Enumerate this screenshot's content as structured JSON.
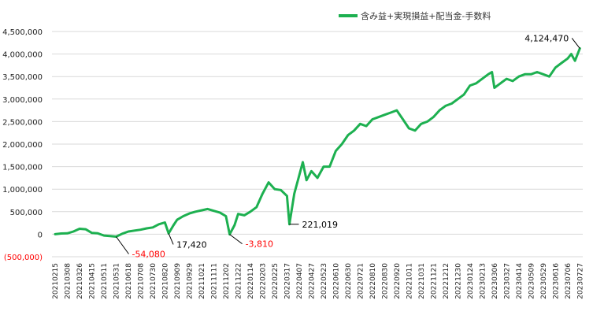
{
  "chart_data": {
    "type": "line",
    "title": "",
    "xlabel": "",
    "ylabel": "",
    "ylim": [
      -500000,
      4500000
    ],
    "yticks": [
      {
        "value": 4500000,
        "label": "4,500,000"
      },
      {
        "value": 4000000,
        "label": "4,000,000"
      },
      {
        "value": 3500000,
        "label": "3,500,000"
      },
      {
        "value": 3000000,
        "label": "3,000,000"
      },
      {
        "value": 2500000,
        "label": "2,500,000"
      },
      {
        "value": 2000000,
        "label": "2,000,000"
      },
      {
        "value": 1500000,
        "label": "1,500,000"
      },
      {
        "value": 1000000,
        "label": "1,000,000"
      },
      {
        "value": 500000,
        "label": "500,000"
      },
      {
        "value": 0,
        "label": "0"
      },
      {
        "value": -500000,
        "label": "(500,000)",
        "color": "#ff0000"
      }
    ],
    "x_tick_labels": [
      "20210215",
      "20210308",
      "20210326",
      "20210415",
      "20210511",
      "20210531",
      "20210618",
      "20210708",
      "20210730",
      "20210820",
      "20210909",
      "20210929",
      "20211021",
      "20211111",
      "20211202",
      "20211222",
      "20220114",
      "20220203",
      "20220225",
      "20220317",
      "20220407",
      "20220427",
      "20220523",
      "20220610",
      "20220630",
      "20220721",
      "20220810",
      "20220830",
      "20220920",
      "20221011",
      "20221031",
      "20221121",
      "20221212",
      "20221230",
      "20230124",
      "20230213",
      "20230306",
      "20230327",
      "20230414",
      "20230509",
      "20230529",
      "20230616",
      "20230706",
      "20230727"
    ],
    "grid": true,
    "legend": "top-center",
    "line_color": "#1db050",
    "series": [
      {
        "name": "含み益+実現損益+配当金-手数料",
        "values": [
          {
            "x": 0,
            "y": 0
          },
          {
            "x": 0.5,
            "y": 15000
          },
          {
            "x": 1,
            "y": 20000
          },
          {
            "x": 1.5,
            "y": 60000
          },
          {
            "x": 2,
            "y": 120000
          },
          {
            "x": 2.5,
            "y": 110000
          },
          {
            "x": 3,
            "y": 30000
          },
          {
            "x": 3.5,
            "y": 20000
          },
          {
            "x": 4,
            "y": -30000
          },
          {
            "x": 4.5,
            "y": -40000
          },
          {
            "x": 5,
            "y": -54080
          },
          {
            "x": 5.5,
            "y": 10000
          },
          {
            "x": 6,
            "y": 60000
          },
          {
            "x": 6.5,
            "y": 80000
          },
          {
            "x": 7,
            "y": 100000
          },
          {
            "x": 7.5,
            "y": 130000
          },
          {
            "x": 8,
            "y": 150000
          },
          {
            "x": 8.5,
            "y": 220000
          },
          {
            "x": 9,
            "y": 260000
          },
          {
            "x": 9.3,
            "y": 17420
          },
          {
            "x": 9.7,
            "y": 200000
          },
          {
            "x": 10,
            "y": 320000
          },
          {
            "x": 10.5,
            "y": 400000
          },
          {
            "x": 11,
            "y": 460000
          },
          {
            "x": 11.5,
            "y": 500000
          },
          {
            "x": 12,
            "y": 530000
          },
          {
            "x": 12.5,
            "y": 560000
          },
          {
            "x": 13,
            "y": 520000
          },
          {
            "x": 13.5,
            "y": 480000
          },
          {
            "x": 14,
            "y": 400000
          },
          {
            "x": 14.3,
            "y": -3810
          },
          {
            "x": 14.7,
            "y": 200000
          },
          {
            "x": 15,
            "y": 450000
          },
          {
            "x": 15.5,
            "y": 420000
          },
          {
            "x": 16,
            "y": 500000
          },
          {
            "x": 16.5,
            "y": 600000
          },
          {
            "x": 17,
            "y": 900000
          },
          {
            "x": 17.5,
            "y": 1150000
          },
          {
            "x": 18,
            "y": 1000000
          },
          {
            "x": 18.5,
            "y": 980000
          },
          {
            "x": 19,
            "y": 850000
          },
          {
            "x": 19.2,
            "y": 221019
          },
          {
            "x": 19.6,
            "y": 900000
          },
          {
            "x": 20,
            "y": 1300000
          },
          {
            "x": 20.3,
            "y": 1600000
          },
          {
            "x": 20.6,
            "y": 1200000
          },
          {
            "x": 21,
            "y": 1400000
          },
          {
            "x": 21.5,
            "y": 1250000
          },
          {
            "x": 22,
            "y": 1500000
          },
          {
            "x": 22.5,
            "y": 1500000
          },
          {
            "x": 23,
            "y": 1850000
          },
          {
            "x": 23.5,
            "y": 2000000
          },
          {
            "x": 24,
            "y": 2200000
          },
          {
            "x": 24.5,
            "y": 2300000
          },
          {
            "x": 25,
            "y": 2450000
          },
          {
            "x": 25.5,
            "y": 2400000
          },
          {
            "x": 26,
            "y": 2550000
          },
          {
            "x": 26.5,
            "y": 2600000
          },
          {
            "x": 27,
            "y": 2650000
          },
          {
            "x": 27.5,
            "y": 2700000
          },
          {
            "x": 28,
            "y": 2750000
          },
          {
            "x": 28.5,
            "y": 2550000
          },
          {
            "x": 29,
            "y": 2350000
          },
          {
            "x": 29.5,
            "y": 2300000
          },
          {
            "x": 30,
            "y": 2450000
          },
          {
            "x": 30.5,
            "y": 2500000
          },
          {
            "x": 31,
            "y": 2600000
          },
          {
            "x": 31.5,
            "y": 2750000
          },
          {
            "x": 32,
            "y": 2850000
          },
          {
            "x": 32.5,
            "y": 2900000
          },
          {
            "x": 33,
            "y": 3000000
          },
          {
            "x": 33.5,
            "y": 3100000
          },
          {
            "x": 34,
            "y": 3300000
          },
          {
            "x": 34.5,
            "y": 3350000
          },
          {
            "x": 35,
            "y": 3450000
          },
          {
            "x": 35.5,
            "y": 3550000
          },
          {
            "x": 35.8,
            "y": 3600000
          },
          {
            "x": 36,
            "y": 3250000
          },
          {
            "x": 36.5,
            "y": 3350000
          },
          {
            "x": 37,
            "y": 3450000
          },
          {
            "x": 37.5,
            "y": 3400000
          },
          {
            "x": 38,
            "y": 3500000
          },
          {
            "x": 38.5,
            "y": 3550000
          },
          {
            "x": 39,
            "y": 3550000
          },
          {
            "x": 39.5,
            "y": 3600000
          },
          {
            "x": 40,
            "y": 3550000
          },
          {
            "x": 40.5,
            "y": 3500000
          },
          {
            "x": 41,
            "y": 3700000
          },
          {
            "x": 41.5,
            "y": 3800000
          },
          {
            "x": 42,
            "y": 3900000
          },
          {
            "x": 42.3,
            "y": 4000000
          },
          {
            "x": 42.6,
            "y": 3850000
          },
          {
            "x": 43,
            "y": 4124470
          }
        ]
      }
    ],
    "annotations": [
      {
        "text": "-54,080",
        "x": 5,
        "y": -54080,
        "color": "#ff0000"
      },
      {
        "text": "17,420",
        "x": 9.3,
        "y": 17420,
        "color": "#000000"
      },
      {
        "text": "-3,810",
        "x": 14.3,
        "y": -3810,
        "color": "#ff0000"
      },
      {
        "text": "221,019",
        "x": 19.2,
        "y": 221019,
        "color": "#000000"
      },
      {
        "text": "4,124,470",
        "x": 43,
        "y": 4124470,
        "color": "#000000"
      }
    ]
  }
}
